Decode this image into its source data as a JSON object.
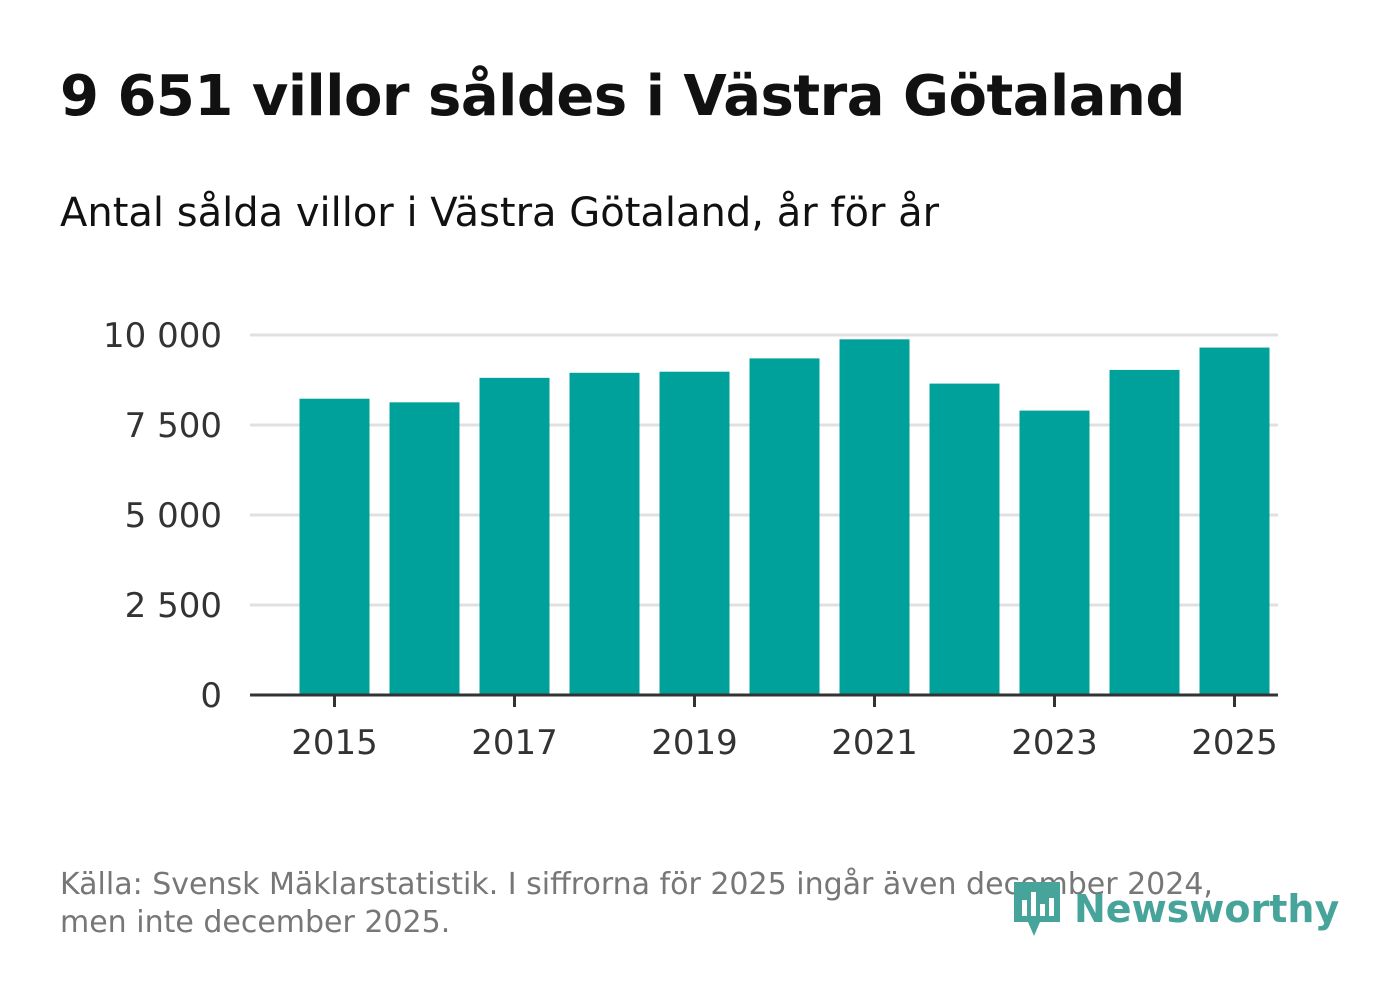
{
  "title": "9 651 villor såldes i Västra Götaland",
  "subtitle": "Antal sålda villor i Västra Götaland, år för år",
  "source": "Källa: Svensk Mäklarstatistik. I siffrorna för 2025 ingår även december 2024, men inte december 2025.",
  "brand": {
    "name": "Newsworthy",
    "color": "#46a49a"
  },
  "colors": {
    "bar": "#00a19a",
    "grid": "#e0e0e0",
    "axis": "#333333"
  },
  "chart_data": {
    "type": "bar",
    "title": "9 651 villor såldes i Västra Götaland",
    "subtitle": "Antal sålda villor i Västra Götaland, år för år",
    "xlabel": "",
    "ylabel": "",
    "categories": [
      "2015",
      "2016",
      "2017",
      "2018",
      "2019",
      "2020",
      "2021",
      "2022",
      "2023",
      "2024",
      "2025"
    ],
    "values": [
      8230,
      8130,
      8810,
      8950,
      8980,
      9350,
      9880,
      8650,
      7900,
      9030,
      9651
    ],
    "ylim": [
      0,
      10000
    ],
    "yticks": [
      0,
      2500,
      5000,
      7500,
      10000
    ],
    "ytick_labels": [
      "0",
      "2 500",
      "5 000",
      "7 500",
      "10 000"
    ],
    "xtick_labels": [
      "2015",
      "2017",
      "2019",
      "2021",
      "2023",
      "2025"
    ],
    "grid": true,
    "legend": "none"
  }
}
